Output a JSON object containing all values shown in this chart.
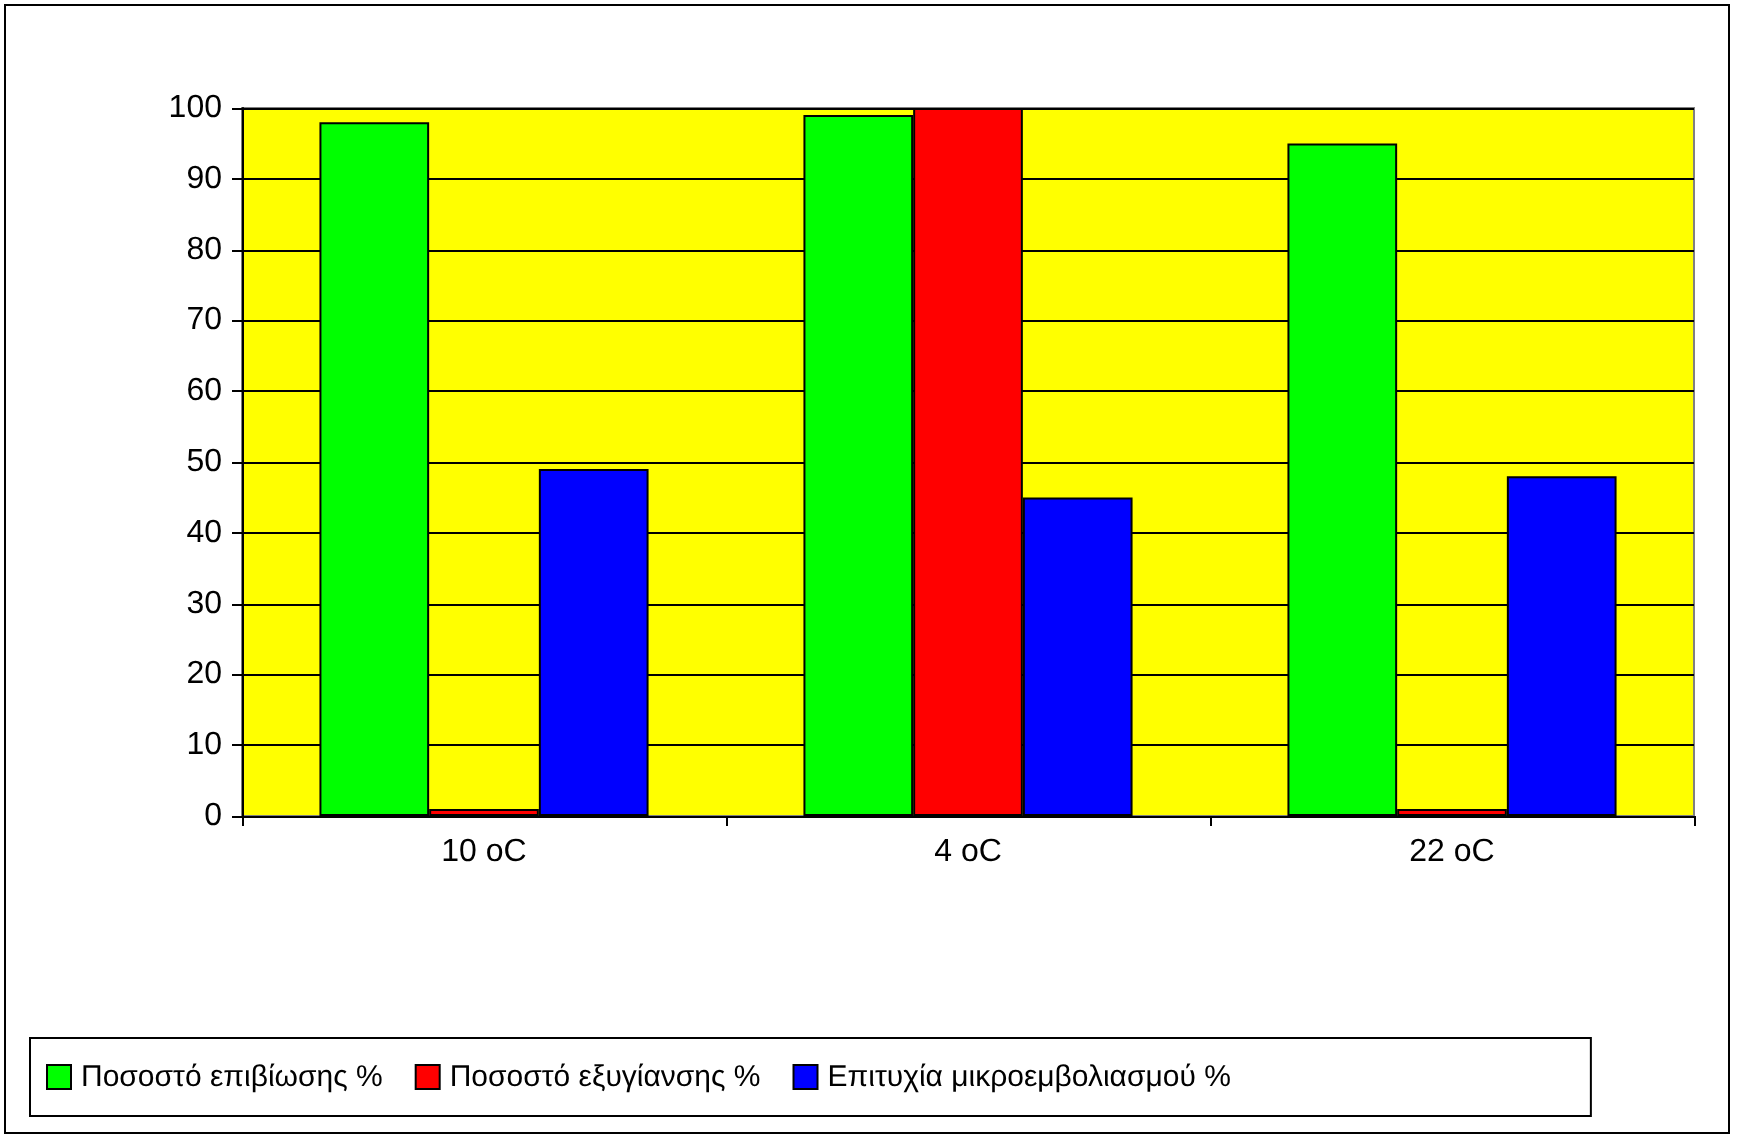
{
  "chart_data": {
    "type": "bar",
    "categories": [
      "10 oC",
      "4 oC",
      "22 oC"
    ],
    "series": [
      {
        "name": "Ποσοστό επιβίωσης %",
        "color": "#00ff00",
        "values": [
          98,
          99,
          95
        ]
      },
      {
        "name": "Ποσοστό εξυγίανσης %",
        "color": "#ff0000",
        "values": [
          1,
          100,
          1
        ]
      },
      {
        "name": "Επιτυχία μικροεμβολιασμού %",
        "color": "#0000ff",
        "values": [
          49,
          45,
          48
        ]
      }
    ],
    "ylim": [
      0,
      100
    ],
    "yticks": [
      0,
      10,
      20,
      30,
      40,
      50,
      60,
      70,
      80,
      90,
      100
    ],
    "grid": "y",
    "legend": "bottom"
  }
}
